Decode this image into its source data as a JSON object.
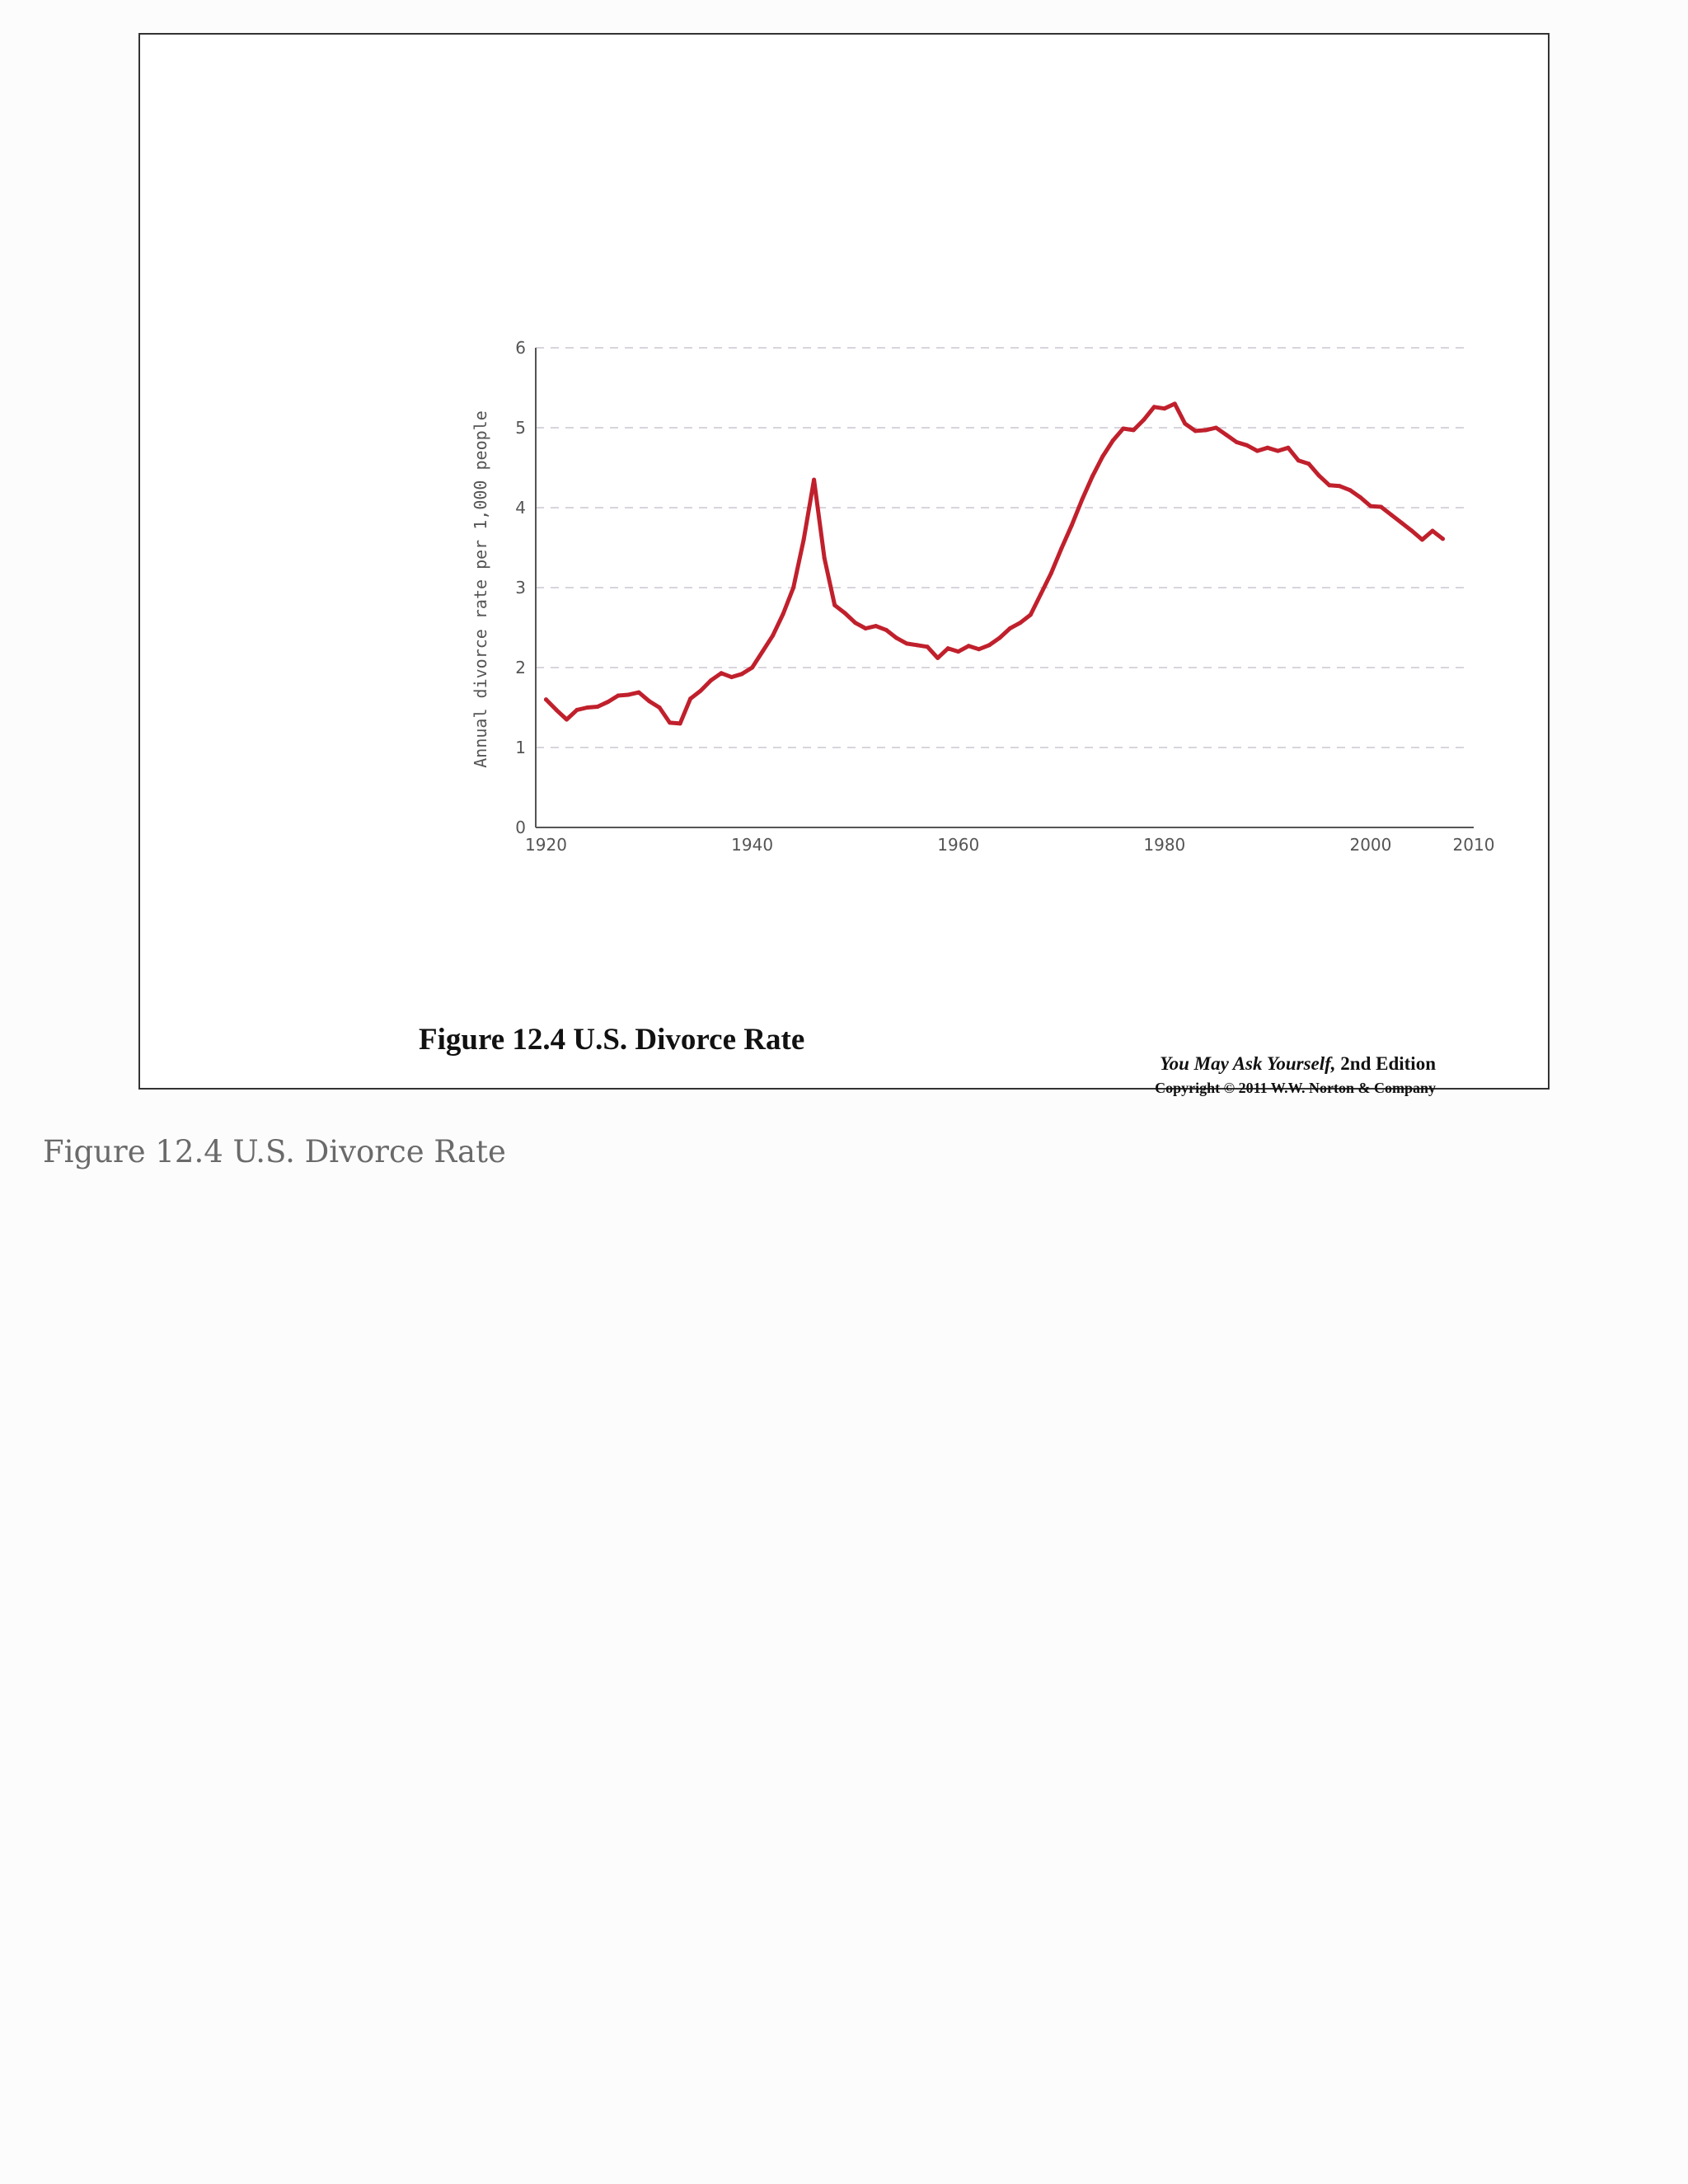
{
  "slide": {
    "title": "Figure 12.4 U.S. Divorce Rate",
    "credit_title": "You May Ask Yourself,",
    "credit_edition": " 2nd Edition",
    "copyright": "Copyright © 2011  W.W. Norton & Company"
  },
  "caption": "Figure 12.4 U.S. Divorce Rate",
  "chart_data": {
    "type": "line",
    "title": "",
    "xlabel": "",
    "ylabel": "Annual divorce rate per 1,000 people",
    "xlim": [
      1919,
      2010
    ],
    "ylim": [
      0,
      6
    ],
    "x_ticks": [
      1920,
      1940,
      1960,
      1980,
      2000,
      2010
    ],
    "y_ticks": [
      0,
      1,
      2,
      3,
      4,
      5,
      6
    ],
    "grid": "horizontal dashed",
    "line_color": "#c0202c",
    "x": [
      1920,
      1921,
      1922,
      1923,
      1924,
      1925,
      1926,
      1927,
      1928,
      1929,
      1930,
      1931,
      1932,
      1933,
      1934,
      1935,
      1936,
      1937,
      1938,
      1939,
      1940,
      1941,
      1942,
      1943,
      1944,
      1945,
      1946,
      1947,
      1948,
      1949,
      1950,
      1951,
      1952,
      1953,
      1954,
      1955,
      1956,
      1957,
      1958,
      1959,
      1960,
      1961,
      1962,
      1963,
      1964,
      1965,
      1966,
      1967,
      1968,
      1969,
      1970,
      1971,
      1972,
      1973,
      1974,
      1975,
      1976,
      1977,
      1978,
      1979,
      1980,
      1981,
      1982,
      1983,
      1984,
      1985,
      1986,
      1987,
      1988,
      1989,
      1990,
      1991,
      1992,
      1993,
      1994,
      1995,
      1996,
      1997,
      1998,
      1999,
      2000,
      2001,
      2002,
      2003,
      2004,
      2005,
      2006,
      2007
    ],
    "values": [
      1.6,
      1.47,
      1.35,
      1.47,
      1.5,
      1.51,
      1.57,
      1.65,
      1.66,
      1.69,
      1.58,
      1.5,
      1.31,
      1.3,
      1.61,
      1.71,
      1.84,
      1.93,
      1.88,
      1.92,
      2.0,
      2.2,
      2.4,
      2.67,
      3.0,
      3.6,
      4.35,
      3.37,
      2.78,
      2.68,
      2.56,
      2.49,
      2.52,
      2.47,
      2.37,
      2.3,
      2.28,
      2.26,
      2.12,
      2.24,
      2.2,
      2.27,
      2.23,
      2.28,
      2.37,
      2.49,
      2.56,
      2.66,
      2.92,
      3.18,
      3.49,
      3.78,
      4.1,
      4.39,
      4.64,
      4.84,
      4.99,
      4.97,
      5.1,
      5.26,
      5.24,
      5.3,
      5.05,
      4.96,
      4.97,
      5.0,
      4.91,
      4.82,
      4.78,
      4.71,
      4.75,
      4.71,
      4.75,
      4.59,
      4.55,
      4.4,
      4.28,
      4.27,
      4.22,
      4.13,
      4.02,
      4.01,
      3.91,
      3.81,
      3.71,
      3.6,
      3.71,
      3.61
    ]
  }
}
